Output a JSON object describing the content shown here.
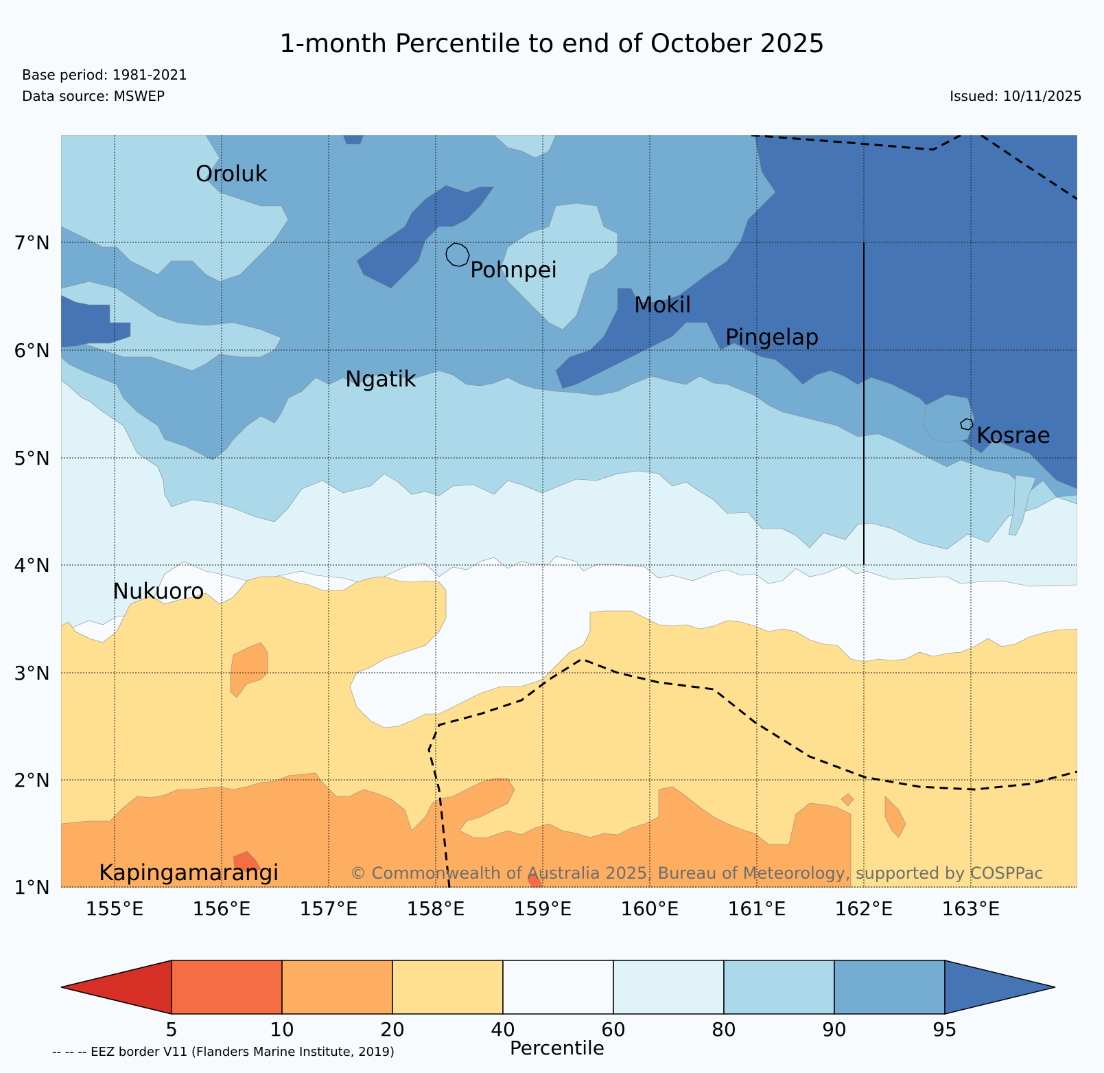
{
  "title": "1-month Percentile to end of October 2025",
  "base_period": "Base period: 1981-2021",
  "data_source": "Data source: MSWEP",
  "issued": "Issued: 10/11/2025",
  "copyright": "© Commonwealth of Australia 2025, Bureau of Meteorology, supported by COSPPac",
  "lon_ticks": [
    "155°E",
    "156°E",
    "157°E",
    "158°E",
    "159°E",
    "160°E",
    "161°E",
    "162°E",
    "163°E"
  ],
  "lat_ticks": [
    "7°N",
    "6°N",
    "5°N",
    "4°N",
    "3°N",
    "2°N",
    "1°N"
  ],
  "places": [
    {
      "name": "Oroluk"
    },
    {
      "name": "Pohnpei"
    },
    {
      "name": "Mokil"
    },
    {
      "name": "Pingelap"
    },
    {
      "name": "Ngatik"
    },
    {
      "name": "Kosrae"
    },
    {
      "name": "Nukuoro"
    },
    {
      "name": "Kapingamarangi"
    }
  ],
  "colorbar": {
    "label": "Percentile",
    "ticks": [
      "5",
      "10",
      "20",
      "40",
      "60",
      "80",
      "90",
      "95"
    ],
    "colors": {
      "below_5": "#d73027",
      "5_10": "#f46d43",
      "10_20": "#fdae61",
      "20_40": "#fee090",
      "40_60": "#f7fbfd",
      "60_80": "#e0f3f8",
      "80_90": "#abd9e9",
      "90_95": "#74add1",
      "above_95": "#4575b4"
    }
  },
  "eez_note": "-- -- -- EEZ border V11 (Flanders Marine Institute, 2019)"
}
